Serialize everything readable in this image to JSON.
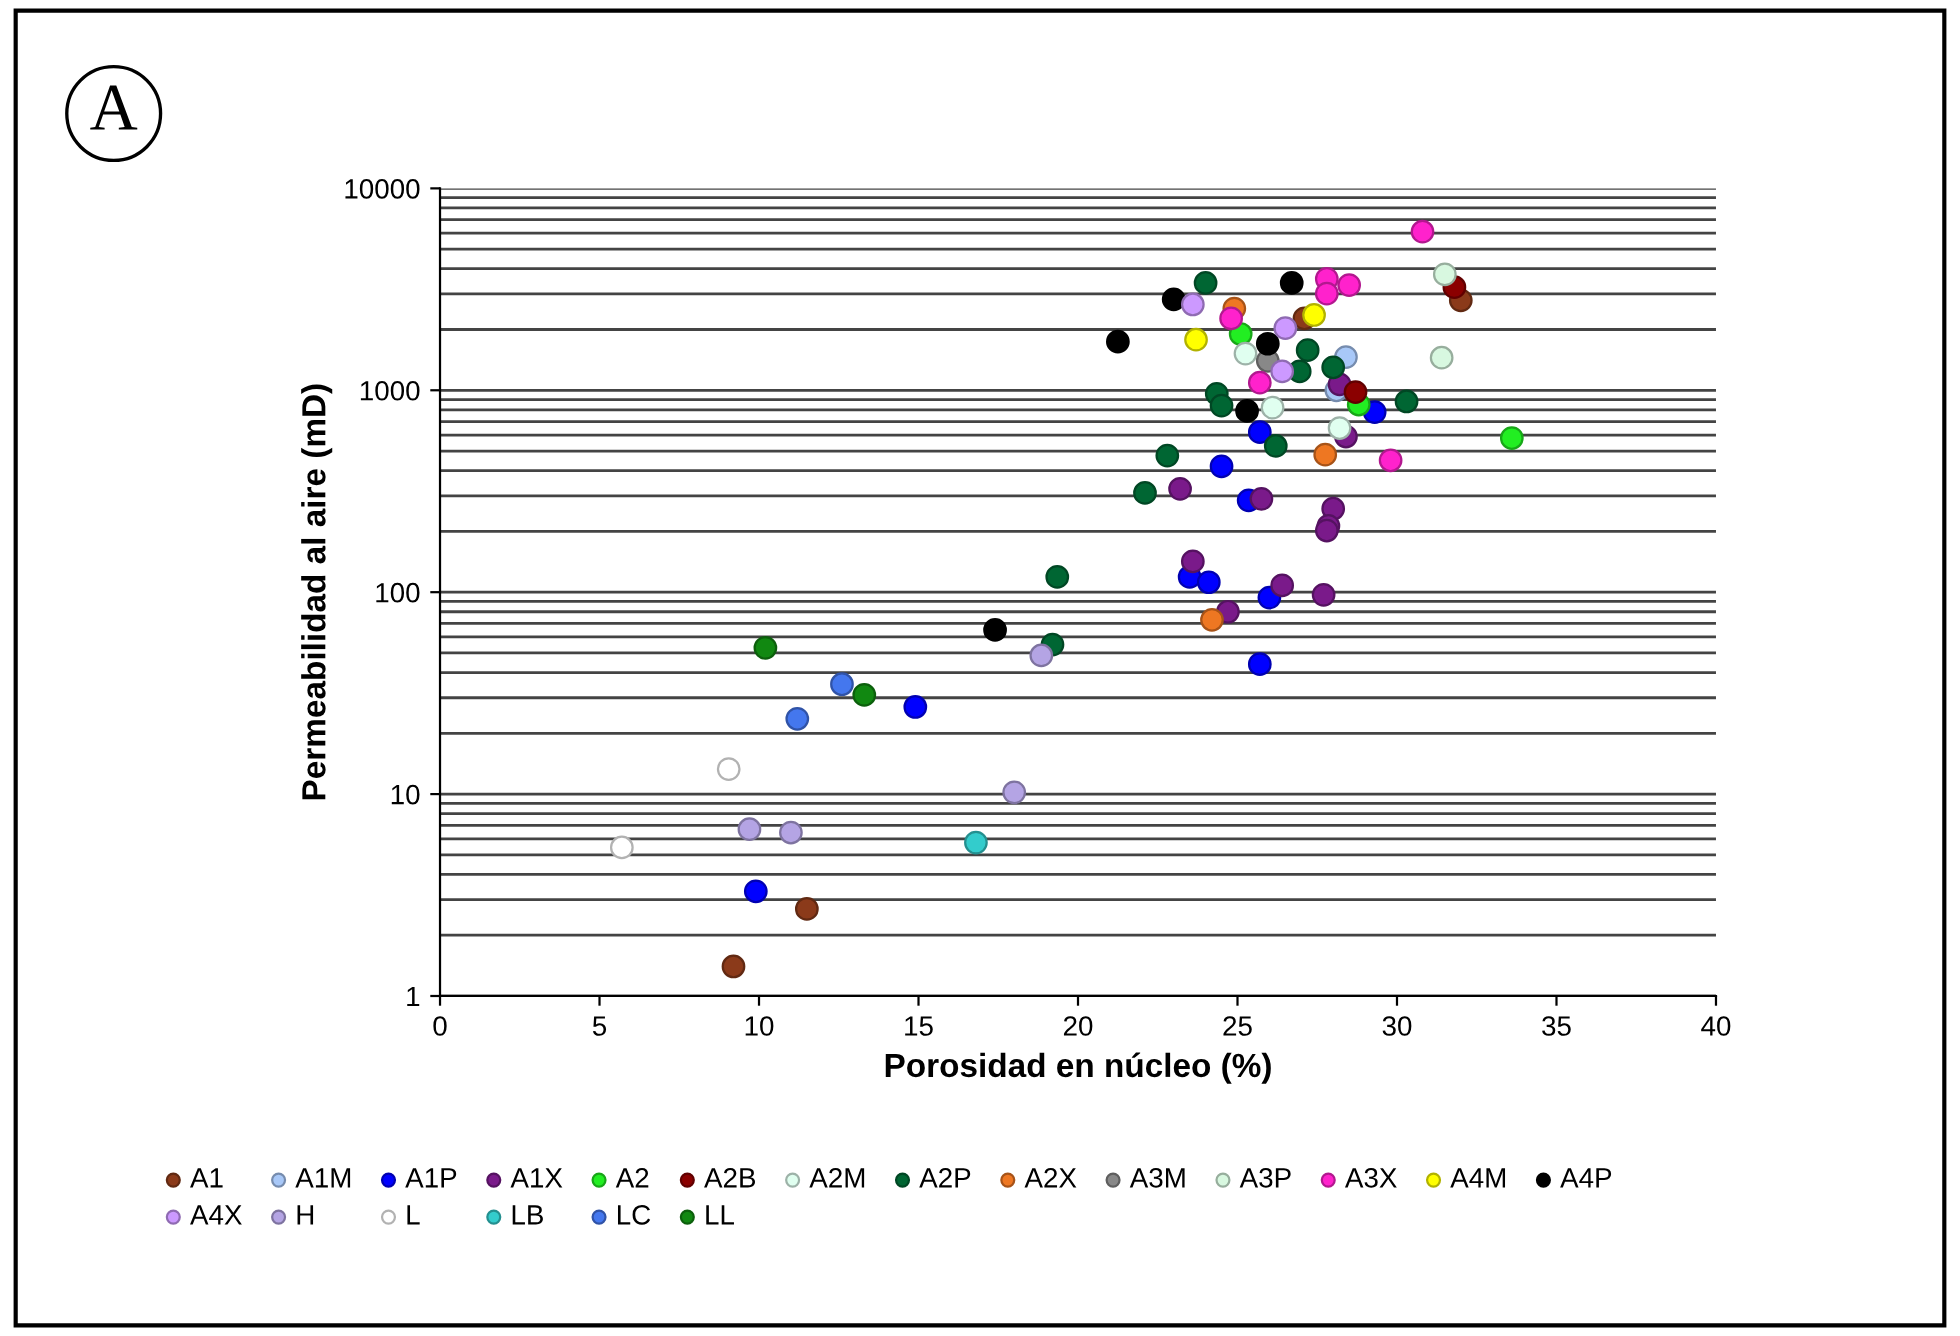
{
  "chart_data": {
    "type": "scatter",
    "xlabel": "Porosidad en núcleo (%)",
    "ylabel": "Permeabilidad al aire (mD)",
    "annotations": [
      "A"
    ],
    "xlim": [
      0,
      40
    ],
    "xticks": [
      0,
      5,
      10,
      15,
      20,
      25,
      30,
      35,
      40
    ],
    "ylim": [
      1,
      10000
    ],
    "yticks": [
      1,
      10,
      100,
      1000,
      10000
    ],
    "log": "y",
    "grid": "y",
    "legend": "bottom",
    "marker": "circle",
    "series": [
      {
        "name": "A1",
        "color": "#8b3a1a",
        "x": [
          9.2,
          11.5,
          32.0,
          27.1
        ],
        "values": [
          1.4,
          2.7,
          2790,
          2270
        ]
      },
      {
        "name": "A1M",
        "color": "#a8c8f8",
        "x": [
          28.4,
          28.1
        ],
        "values": [
          1460,
          1000
        ]
      },
      {
        "name": "A1P",
        "color": "#0000ff",
        "x": [
          29.3,
          25.7,
          24.5,
          25.35,
          23.5,
          24.1,
          26.0,
          25.7,
          14.9,
          9.9
        ],
        "values": [
          780,
          620,
          420,
          285,
          119,
          112,
          94,
          44,
          27,
          3.3
        ]
      },
      {
        "name": "A1X",
        "color": "#7a1a8a",
        "x": [
          28.2,
          28.4,
          23.2,
          25.75,
          28.0,
          27.85,
          27.8,
          23.6,
          26.4,
          27.7,
          24.7
        ],
        "values": [
          1070,
          590,
          325,
          290,
          259,
          213,
          202,
          142,
          108,
          97,
          80
        ]
      },
      {
        "name": "A2",
        "color": "#22ee22",
        "x": [
          25.1,
          28.8,
          33.6
        ],
        "values": [
          1900,
          850,
          580
        ]
      },
      {
        "name": "A2B",
        "color": "#8b0000",
        "x": [
          31.8,
          28.7
        ],
        "values": [
          3240,
          980
        ]
      },
      {
        "name": "A2M",
        "color": "#e0fff0",
        "x": [
          25.25,
          26.1,
          28.2
        ],
        "values": [
          1520,
          820,
          650
        ]
      },
      {
        "name": "A2P",
        "color": "#006633",
        "x": [
          24.0,
          27.2,
          26.95,
          28.0,
          24.35,
          24.5,
          30.3,
          26.2,
          22.8,
          22.1,
          19.35,
          19.2
        ],
        "values": [
          3400,
          1580,
          1240,
          1300,
          960,
          840,
          880,
          530,
          475,
          310,
          119,
          55
        ]
      },
      {
        "name": "A2X",
        "color": "#ee7722",
        "x": [
          24.9,
          27.75,
          24.2
        ],
        "values": [
          2540,
          480,
          73
        ]
      },
      {
        "name": "A3M",
        "color": "#888888",
        "x": [
          25.95
        ],
        "values": [
          1400
        ]
      },
      {
        "name": "A3P",
        "color": "#d8f8e0",
        "x": [
          31.5,
          31.4
        ],
        "values": [
          3750,
          1450
        ]
      },
      {
        "name": "A3X",
        "color": "#ff22cc",
        "x": [
          30.8,
          27.8,
          28.5,
          27.8,
          24.8,
          25.7,
          29.8
        ],
        "values": [
          6100,
          3560,
          3320,
          3010,
          2270,
          1090,
          450
        ]
      },
      {
        "name": "A4M",
        "color": "#ffff00",
        "x": [
          27.4,
          23.7
        ],
        "values": [
          2360,
          1780
        ]
      },
      {
        "name": "A4P",
        "color": "#000000",
        "x": [
          26.7,
          23.0,
          21.25,
          25.95,
          25.3,
          17.4
        ],
        "values": [
          3400,
          2820,
          1740,
          1700,
          790,
          65
        ]
      },
      {
        "name": "A4X",
        "color": "#cc99ff",
        "x": [
          23.6,
          26.5,
          26.4
        ],
        "values": [
          2660,
          2030,
          1240
        ]
      },
      {
        "name": "H",
        "color": "#b4a4e4",
        "x": [
          18.85,
          18.0,
          9.7,
          11.0
        ],
        "values": [
          48.6,
          10.2,
          6.7,
          6.45
        ]
      },
      {
        "name": "L",
        "color": "#ffffff",
        "x": [
          9.05,
          5.7
        ],
        "values": [
          13.3,
          5.44
        ]
      },
      {
        "name": "LB",
        "color": "#33cccc",
        "x": [
          16.8
        ],
        "values": [
          5.75
        ]
      },
      {
        "name": "LC",
        "color": "#4477ee",
        "x": [
          12.6,
          11.2
        ],
        "values": [
          35,
          23.6
        ]
      },
      {
        "name": "LL",
        "color": "#118811",
        "x": [
          10.2,
          13.3
        ],
        "values": [
          53,
          31
        ]
      }
    ]
  }
}
